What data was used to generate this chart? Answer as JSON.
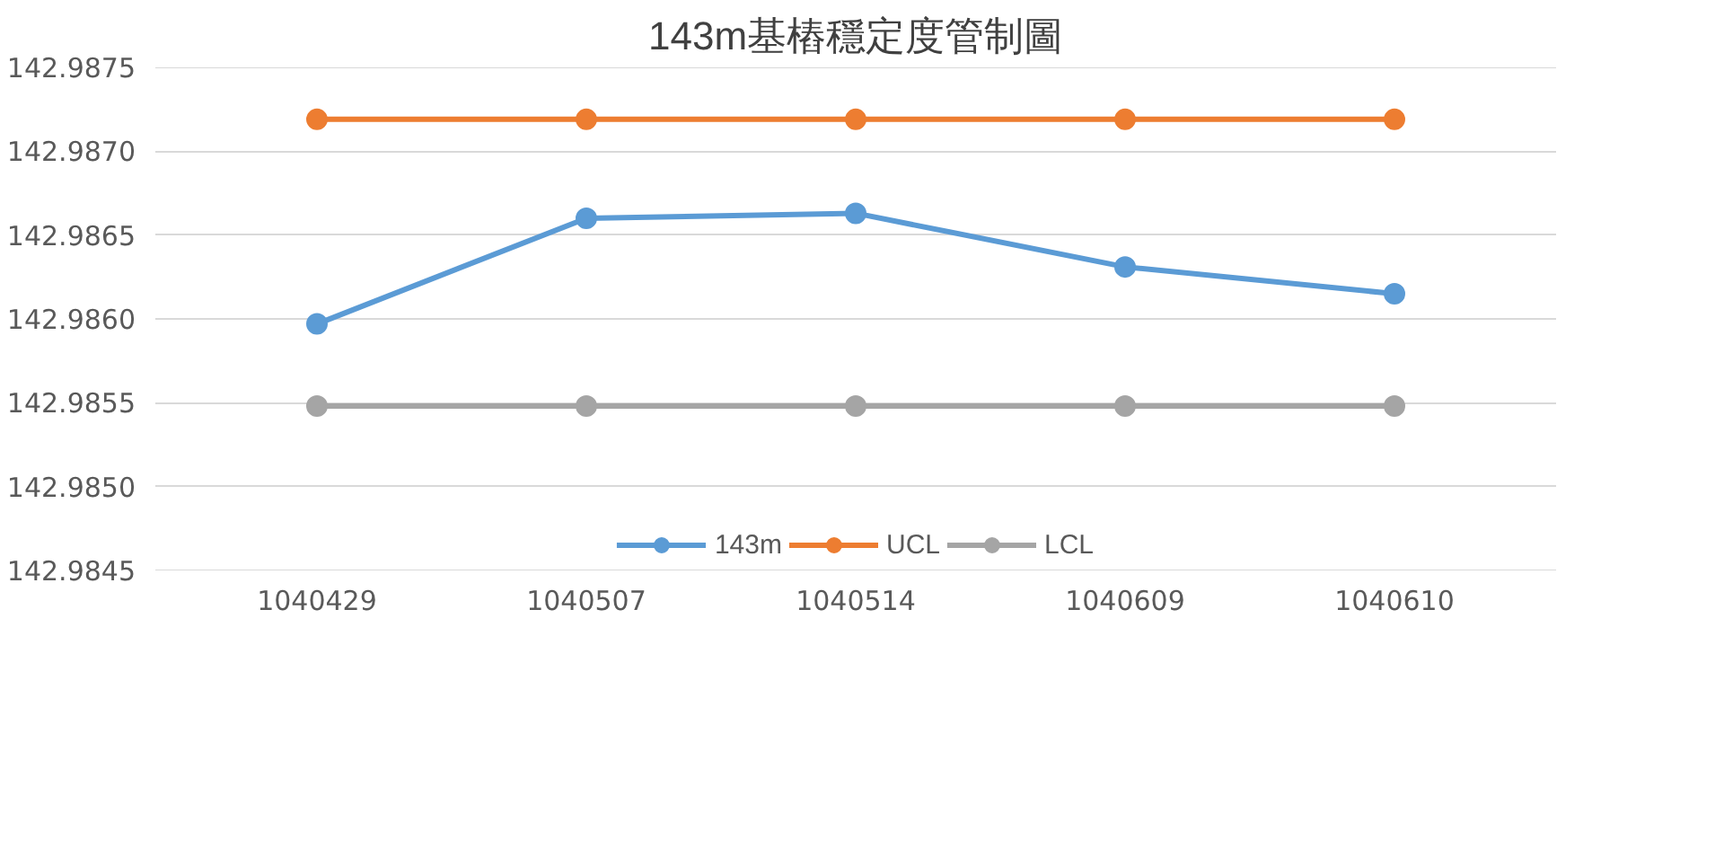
{
  "chart_data": {
    "type": "line",
    "title": "143m基樁穩定度管制圖",
    "categories": [
      "1040429",
      "1040507",
      "1040514",
      "1040609",
      "1040610"
    ],
    "series": [
      {
        "name": "143m",
        "color": "#5b9bd5",
        "values": [
          142.98597,
          142.9866,
          142.98663,
          142.98631,
          142.98615
        ]
      },
      {
        "name": "UCL",
        "color": "#ed7d31",
        "values": [
          142.98719,
          142.98719,
          142.98719,
          142.98719,
          142.98719
        ]
      },
      {
        "name": "LCL",
        "color": "#a5a5a5",
        "values": [
          142.98548,
          142.98548,
          142.98548,
          142.98548,
          142.98548
        ]
      }
    ],
    "ylim": [
      142.9845,
      142.9875
    ],
    "yticks": [
      {
        "value": 142.9845,
        "label": "142.9845"
      },
      {
        "value": 142.985,
        "label": "142.9850"
      },
      {
        "value": 142.9855,
        "label": "142.9855"
      },
      {
        "value": 142.986,
        "label": "142.9860"
      },
      {
        "value": 142.9865,
        "label": "142.9865"
      },
      {
        "value": 142.987,
        "label": "142.9870"
      },
      {
        "value": 142.9875,
        "label": "142.9875"
      }
    ],
    "grid": "y",
    "legend": "bottom",
    "marker": "circle",
    "line_style": "solid"
  }
}
